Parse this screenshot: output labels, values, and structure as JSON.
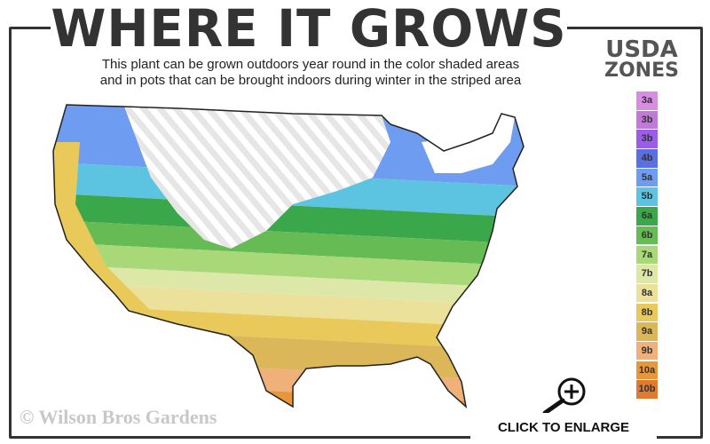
{
  "header": {
    "title": "WHERE IT GROWS",
    "subtitle_line1": "This plant can be grown outdoors year round in the color shaded areas",
    "subtitle_line2": "and in pots that can be brought indoors during winter in the striped area"
  },
  "legend": {
    "title_line1": "USDA",
    "title_line2": "ZONES",
    "zones": [
      {
        "label": "3a",
        "color": "#d78de0"
      },
      {
        "label": "3b",
        "color": "#c07ad8"
      },
      {
        "label": "3b",
        "color": "#9a5de8"
      },
      {
        "label": "4b",
        "color": "#5a70e0"
      },
      {
        "label": "5a",
        "color": "#6e9cf0"
      },
      {
        "label": "5b",
        "color": "#5cc4e0"
      },
      {
        "label": "6a",
        "color": "#3aa84a"
      },
      {
        "label": "6b",
        "color": "#66bb55"
      },
      {
        "label": "7a",
        "color": "#a8d878"
      },
      {
        "label": "7b",
        "color": "#dde8a8"
      },
      {
        "label": "8a",
        "color": "#ece19a"
      },
      {
        "label": "8b",
        "color": "#e8c95a"
      },
      {
        "label": "9a",
        "color": "#dbb75a"
      },
      {
        "label": "9b",
        "color": "#f0b07a"
      },
      {
        "label": "10a",
        "color": "#e8963a"
      },
      {
        "label": "10b",
        "color": "#e07a30"
      }
    ]
  },
  "footer": {
    "copyright": "© Wilson Bros Gardens",
    "enlarge_label": "CLICK TO ENLARGE"
  },
  "icons": {
    "enlarge": "zoom-in-magnifier-icon"
  }
}
